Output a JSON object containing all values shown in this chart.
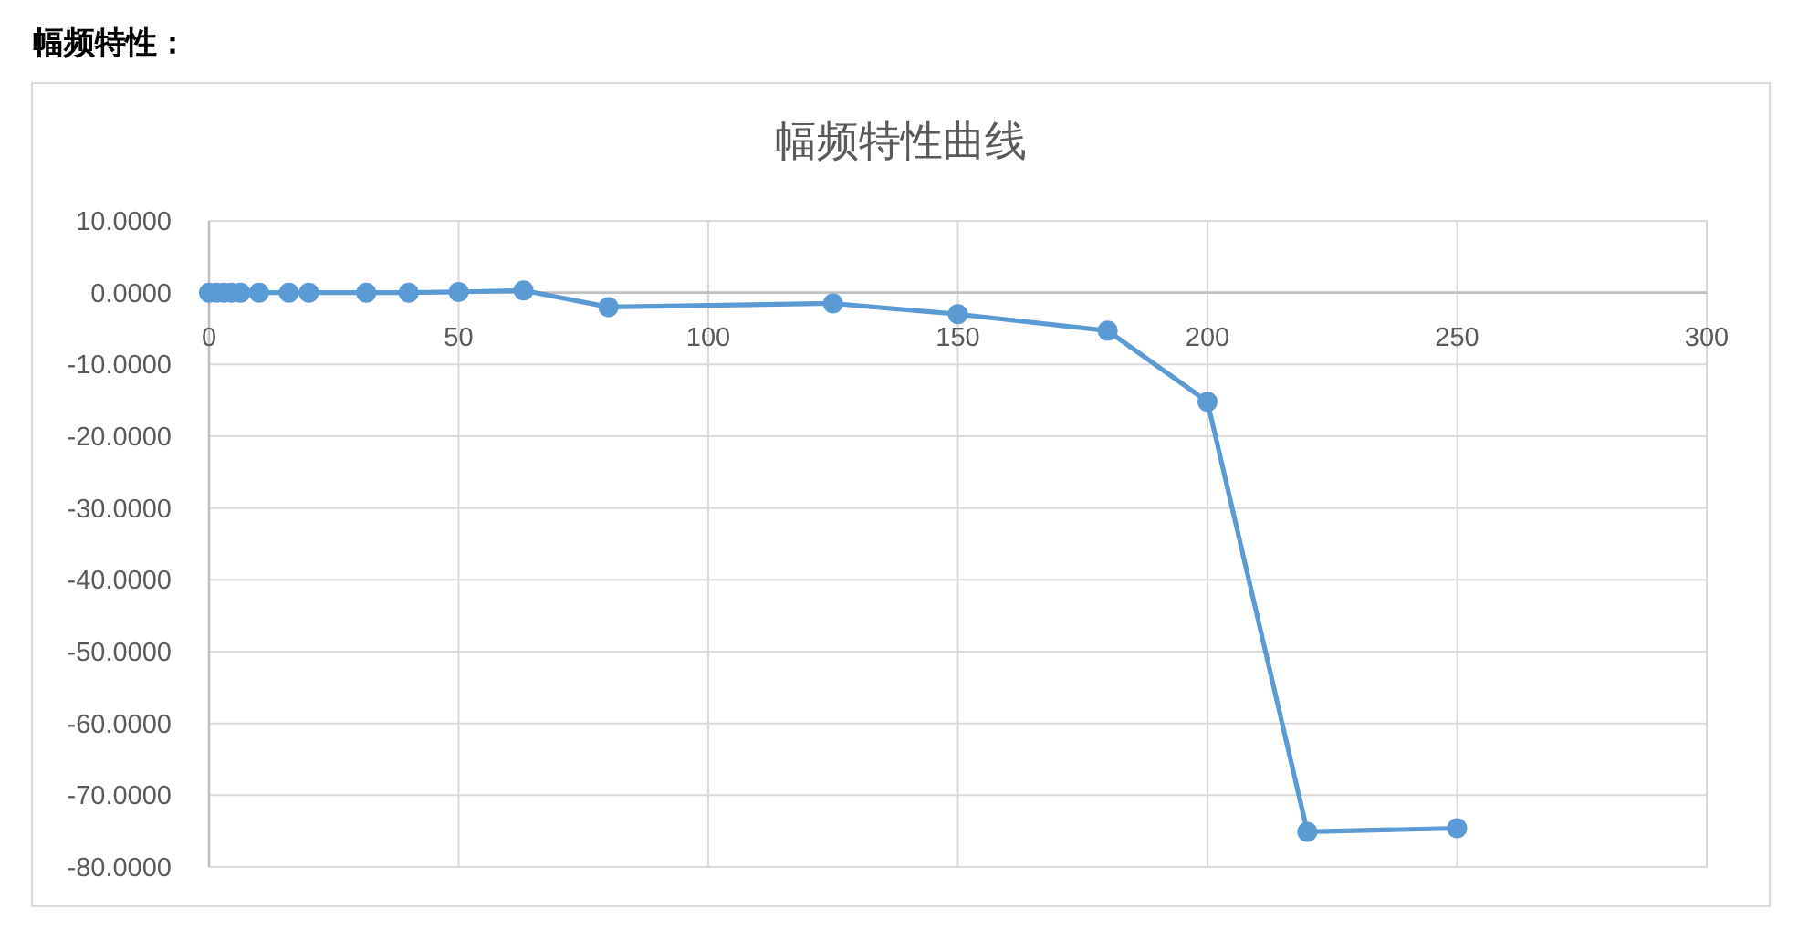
{
  "chart_data": {
    "type": "line",
    "title": "幅频特性曲线",
    "annotations": [
      "幅频特性："
    ],
    "x": [
      0,
      1.5,
      3,
      4.5,
      6.3,
      10,
      16,
      20,
      31.5,
      40,
      50,
      63,
      80,
      125,
      150,
      180,
      200,
      220,
      250
    ],
    "series": [
      {
        "color": "#5b9bd5",
        "values": [
          0,
          0,
          0,
          0,
          0,
          0,
          0,
          0,
          0,
          0,
          0.1,
          0.3,
          -2.0,
          -1.5,
          -3.0,
          -5.3,
          -15.2,
          -75.1,
          -74.6
        ]
      }
    ],
    "xlim": [
      0,
      300
    ],
    "xticks": [
      0,
      50,
      100,
      150,
      200,
      250,
      300
    ],
    "ylim": [
      -80,
      10
    ],
    "yticks": [
      {
        "value": 10,
        "label": "10.0000"
      },
      {
        "value": 0,
        "label": "0.0000"
      },
      {
        "value": -10,
        "label": "-10.0000"
      },
      {
        "value": -20,
        "label": "-20.0000"
      },
      {
        "value": -30,
        "label": "-30.0000"
      },
      {
        "value": -40,
        "label": "-40.0000"
      },
      {
        "value": -50,
        "label": "-50.0000"
      },
      {
        "value": -60,
        "label": "-60.0000"
      },
      {
        "value": -70,
        "label": "-70.0000"
      },
      {
        "value": -80,
        "label": "-80.0000"
      }
    ],
    "grid": true,
    "marker": "circle",
    "line_style": "solid"
  }
}
